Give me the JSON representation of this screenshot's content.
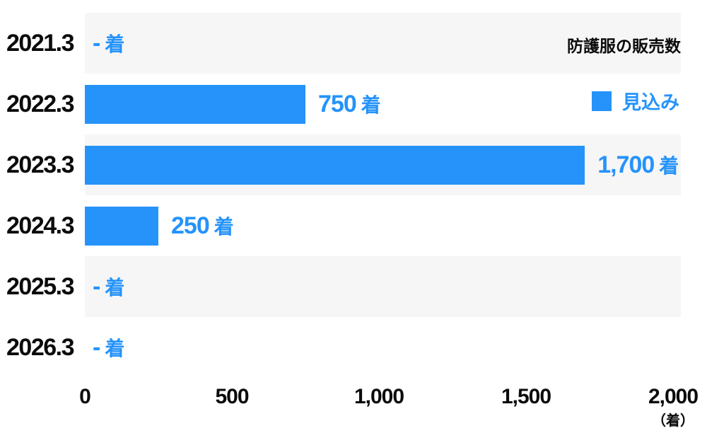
{
  "chart_data": {
    "type": "bar",
    "orientation": "horizontal",
    "title": "防護服の販売数",
    "legend": [
      {
        "label": "見込み",
        "color": "#2593fa"
      }
    ],
    "legend_position": "top-right",
    "categories": [
      "2021.3",
      "2022.3",
      "2023.3",
      "2024.3",
      "2025.3",
      "2026.3"
    ],
    "values": [
      null,
      750,
      1700,
      250,
      null,
      null
    ],
    "value_labels": [
      {
        "num": "-",
        "unit": "着"
      },
      {
        "num": "750",
        "unit": "着"
      },
      {
        "num": "1,700",
        "unit": "着"
      },
      {
        "num": "250",
        "unit": "着"
      },
      {
        "num": "-",
        "unit": "着"
      },
      {
        "num": "-",
        "unit": "着"
      }
    ],
    "xlabel": "",
    "ylabel": "",
    "xlim": [
      0,
      2000
    ],
    "xticks": {
      "values": [
        0,
        500,
        1000,
        1500,
        2000
      ],
      "labels": [
        "0",
        "500",
        "1,000",
        "1,500",
        "2,000"
      ]
    },
    "x_unit": "（着）",
    "grid": false,
    "row_stripes": true
  },
  "colors": {
    "bar": "#2593fa",
    "value_text": "#2593fa",
    "stripe": "#f6f6f6",
    "axis_text": "#0b0b0b"
  }
}
